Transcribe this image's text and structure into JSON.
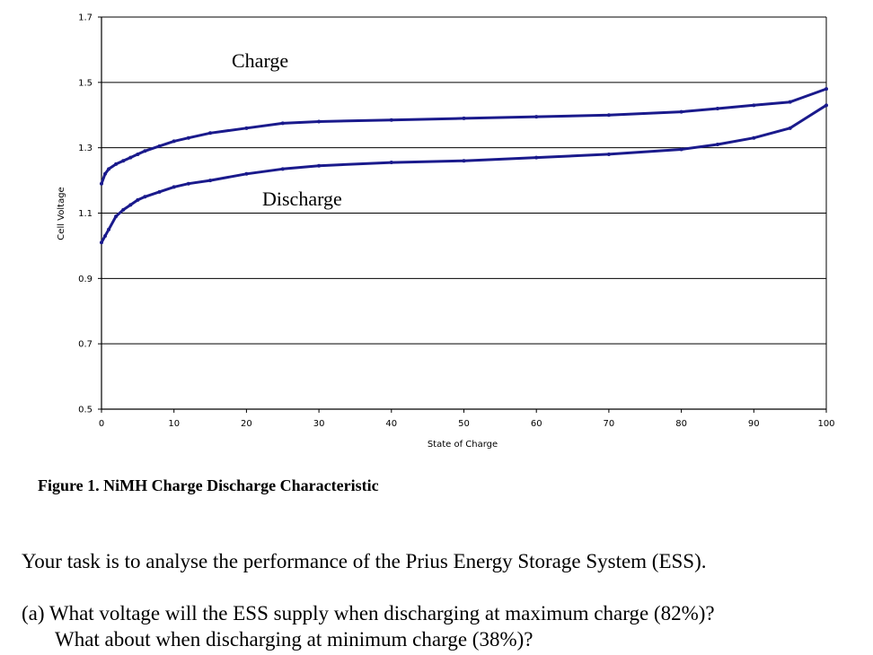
{
  "chart_data": {
    "type": "line",
    "title": "",
    "xlabel": "State of Charge",
    "ylabel": "Cell Voltage",
    "xlim": [
      0,
      100
    ],
    "ylim": [
      0.5,
      1.7
    ],
    "xticks": [
      "0",
      "10",
      "20",
      "30",
      "40",
      "50",
      "60",
      "70",
      "80",
      "90",
      "100"
    ],
    "yticks": [
      "0.5",
      "0.7",
      "0.9",
      "1.1",
      "1.3",
      "1.5",
      "1.7"
    ],
    "grid": "horizontal",
    "line_color": "#1a1a8c",
    "series": [
      {
        "label": "Charge",
        "x": [
          0,
          0.5,
          1,
          2,
          3,
          4,
          5,
          6,
          8,
          10,
          12,
          15,
          20,
          25,
          30,
          40,
          50,
          60,
          70,
          80,
          85,
          90,
          95,
          100
        ],
        "y": [
          1.19,
          1.22,
          1.235,
          1.25,
          1.26,
          1.27,
          1.28,
          1.29,
          1.305,
          1.32,
          1.33,
          1.345,
          1.36,
          1.375,
          1.38,
          1.385,
          1.39,
          1.395,
          1.4,
          1.41,
          1.42,
          1.43,
          1.44,
          1.48
        ]
      },
      {
        "label": "Discharge",
        "x": [
          0,
          0.5,
          1,
          2,
          3,
          4,
          5,
          6,
          8,
          10,
          12,
          15,
          20,
          25,
          30,
          40,
          50,
          60,
          70,
          80,
          85,
          90,
          95,
          100
        ],
        "y": [
          1.01,
          1.03,
          1.05,
          1.09,
          1.11,
          1.125,
          1.14,
          1.15,
          1.165,
          1.18,
          1.19,
          1.2,
          1.22,
          1.235,
          1.245,
          1.255,
          1.26,
          1.27,
          1.28,
          1.295,
          1.31,
          1.33,
          1.36,
          1.43
        ]
      }
    ]
  },
  "text": {
    "caption": "Figure 1. NiMH Charge Discharge Characteristic",
    "task": "Your task is to analyse the performance of the Prius Energy Storage System (ESS).",
    "question_line1": "(a) What voltage will the ESS supply when discharging at maximum charge (82%)?",
    "question_line2": "What about when discharging at minimum charge (38%)?"
  }
}
